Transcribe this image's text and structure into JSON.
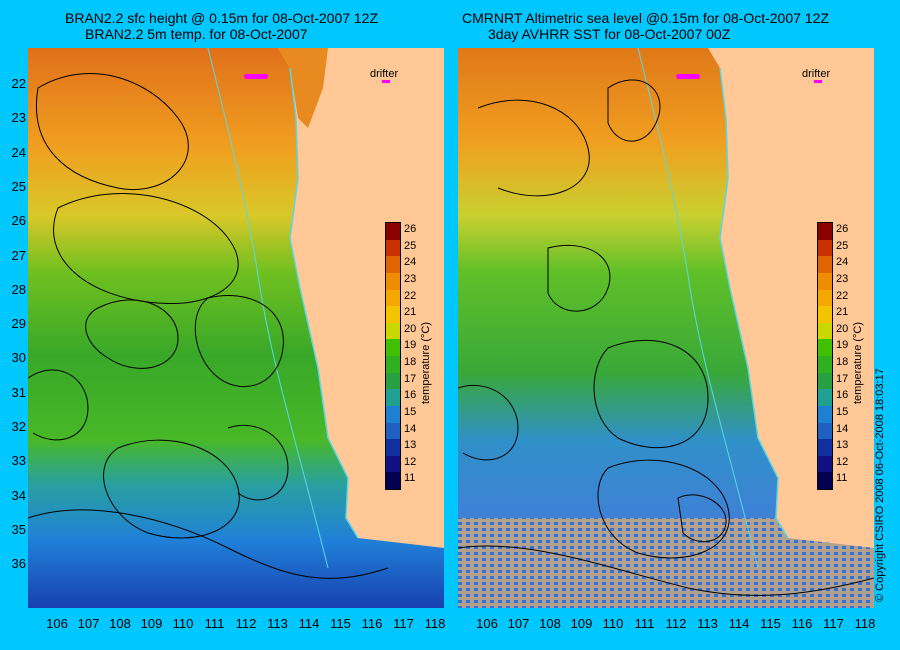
{
  "left_panel": {
    "title_line1": "BRAN2.2 sfc height @ 0.15m for 08-Oct-2007 12Z",
    "title_line2": "BRAN2.2 5m temp. for 08-Oct-2007"
  },
  "right_panel": {
    "title_line1": "CMRNRT Altimetric sea level  @0.15m  for 08-Oct-2007 12Z",
    "title_line2": "3day AVHRR SST for 08-Oct-2007 00Z"
  },
  "drifter_label": "drifter",
  "colorbar": {
    "title": "temperature (°C)",
    "ticks": [
      "26",
      "25",
      "24",
      "23",
      "22",
      "21",
      "20",
      "19",
      "18",
      "17",
      "16",
      "15",
      "14",
      "13",
      "12",
      "11"
    ],
    "colors": [
      "#8b0000",
      "#c83200",
      "#e06400",
      "#f08c00",
      "#f5a800",
      "#f5c400",
      "#c8d800",
      "#40c000",
      "#30b020",
      "#28a040",
      "#20a090",
      "#2080d0",
      "#2060c0",
      "#1030a0",
      "#101080",
      "#000050"
    ]
  },
  "y_ticks": [
    "22",
    "23",
    "24",
    "25",
    "26",
    "27",
    "28",
    "29",
    "30",
    "31",
    "32",
    "33",
    "34",
    "35",
    "36"
  ],
  "x_ticks": [
    "106",
    "107",
    "108",
    "109",
    "110",
    "111",
    "112",
    "113",
    "114",
    "115",
    "116",
    "117",
    "118"
  ],
  "copyright": "© Copyright CSIRO 2008    06-Oct-2008 18:03:17",
  "colors": {
    "background": "#00c8ff",
    "land": "#ffc896",
    "coastline": "#5ad7e6"
  }
}
